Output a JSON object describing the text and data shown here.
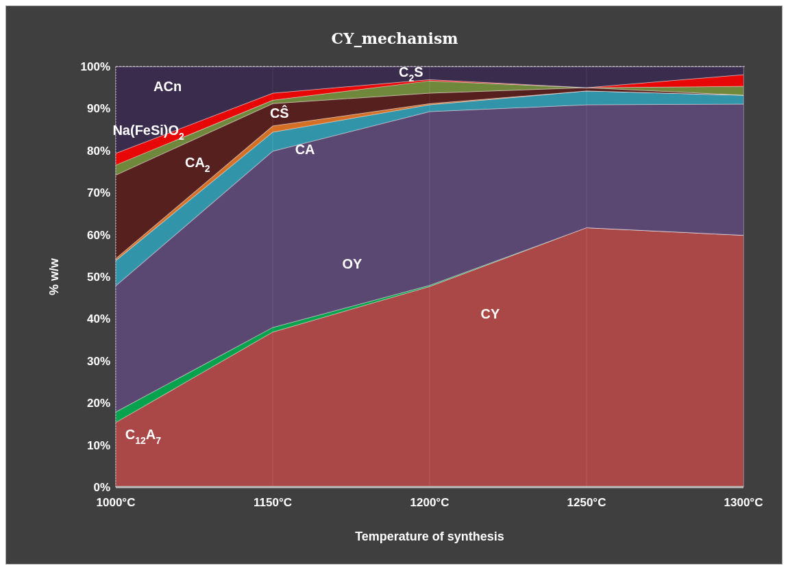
{
  "chart_data": {
    "type": "area",
    "stacked": true,
    "title": "CY_mechanism",
    "xlabel": "Temperature of synthesis",
    "ylabel": "% w/w",
    "categories": [
      "1000°C",
      "1150°C",
      "1200°C",
      "1250°C",
      "1300°C"
    ],
    "ylim": [
      0,
      100
    ],
    "yticks": [
      {
        "value": 0,
        "label": "0%"
      },
      {
        "value": 10,
        "label": "10%"
      },
      {
        "value": 20,
        "label": "20%"
      },
      {
        "value": 30,
        "label": "30%"
      },
      {
        "value": 40,
        "label": "40%"
      },
      {
        "value": 50,
        "label": "50%"
      },
      {
        "value": 60,
        "label": "60%"
      },
      {
        "value": 70,
        "label": "70%"
      },
      {
        "value": 80,
        "label": "80%"
      },
      {
        "value": 90,
        "label": "90%"
      },
      {
        "value": 100,
        "label": "100%"
      }
    ],
    "grid": "x",
    "series": [
      {
        "name": "CY",
        "color": "#b84a48",
        "values": [
          15.4,
          36.9,
          47.7,
          61.7,
          59.9
        ]
      },
      {
        "name": "C$_{12}$A$_{7}$",
        "color": "#00b050",
        "values": [
          2.5,
          1.1,
          0.3,
          0,
          0
        ]
      },
      {
        "name": "OY",
        "color": "#5f497a",
        "values": [
          30.0,
          41.9,
          41.3,
          29.2,
          31.2
        ]
      },
      {
        "name": "CA",
        "color": "#31a0b8",
        "values": [
          6.0,
          4.5,
          1.6,
          3.3,
          2.1
        ]
      },
      {
        "name": "CŜ",
        "color": "#e87722",
        "values": [
          0.5,
          1.5,
          0.3,
          0,
          0
        ]
      },
      {
        "name": "CA$_{2}$",
        "color": "#5a1c1a",
        "values": [
          19.8,
          5.3,
          2.5,
          0.8,
          0
        ]
      },
      {
        "name": "C$_{2}$S",
        "color": "#77933c",
        "values": [
          2.4,
          0.8,
          2.9,
          0,
          2.1
        ]
      },
      {
        "name": "Na(FeSi)O$_{2}$",
        "color": "#ff0000",
        "values": [
          2.8,
          1.7,
          0.3,
          0,
          2.8
        ]
      },
      {
        "name": "ACn",
        "color": "#3a2a4e",
        "values": [
          20.6,
          6.3,
          3.1,
          5.0,
          1.9
        ]
      }
    ]
  }
}
